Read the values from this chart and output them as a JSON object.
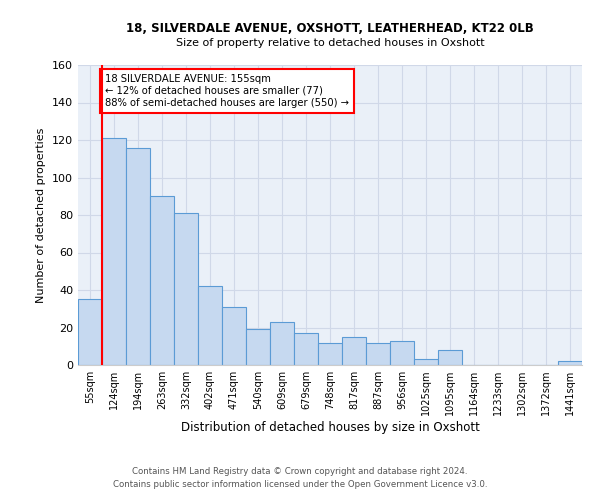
{
  "title1": "18, SILVERDALE AVENUE, OXSHOTT, LEATHERHEAD, KT22 0LB",
  "title2": "Size of property relative to detached houses in Oxshott",
  "xlabel": "Distribution of detached houses by size in Oxshott",
  "ylabel": "Number of detached properties",
  "categories": [
    "55sqm",
    "124sqm",
    "194sqm",
    "263sqm",
    "332sqm",
    "402sqm",
    "471sqm",
    "540sqm",
    "609sqm",
    "679sqm",
    "748sqm",
    "817sqm",
    "887sqm",
    "956sqm",
    "1025sqm",
    "1095sqm",
    "1164sqm",
    "1233sqm",
    "1302sqm",
    "1372sqm",
    "1441sqm"
  ],
  "values": [
    35,
    121,
    116,
    90,
    81,
    42,
    31,
    19,
    23,
    17,
    12,
    15,
    12,
    13,
    3,
    8,
    0,
    0,
    0,
    0,
    2
  ],
  "bar_color": "#c6d9f0",
  "bar_edge_color": "#5b9bd5",
  "red_line_index": 1,
  "annotation_text": "18 SILVERDALE AVENUE: 155sqm\n← 12% of detached houses are smaller (77)\n88% of semi-detached houses are larger (550) →",
  "annotation_box_color": "white",
  "annotation_box_edge_color": "red",
  "red_line_color": "red",
  "ylim": [
    0,
    160
  ],
  "yticks": [
    0,
    20,
    40,
    60,
    80,
    100,
    120,
    140,
    160
  ],
  "footer1": "Contains HM Land Registry data © Crown copyright and database right 2024.",
  "footer2": "Contains public sector information licensed under the Open Government Licence v3.0.",
  "grid_color": "#d0d8e8",
  "background_color": "#eaf0f8"
}
